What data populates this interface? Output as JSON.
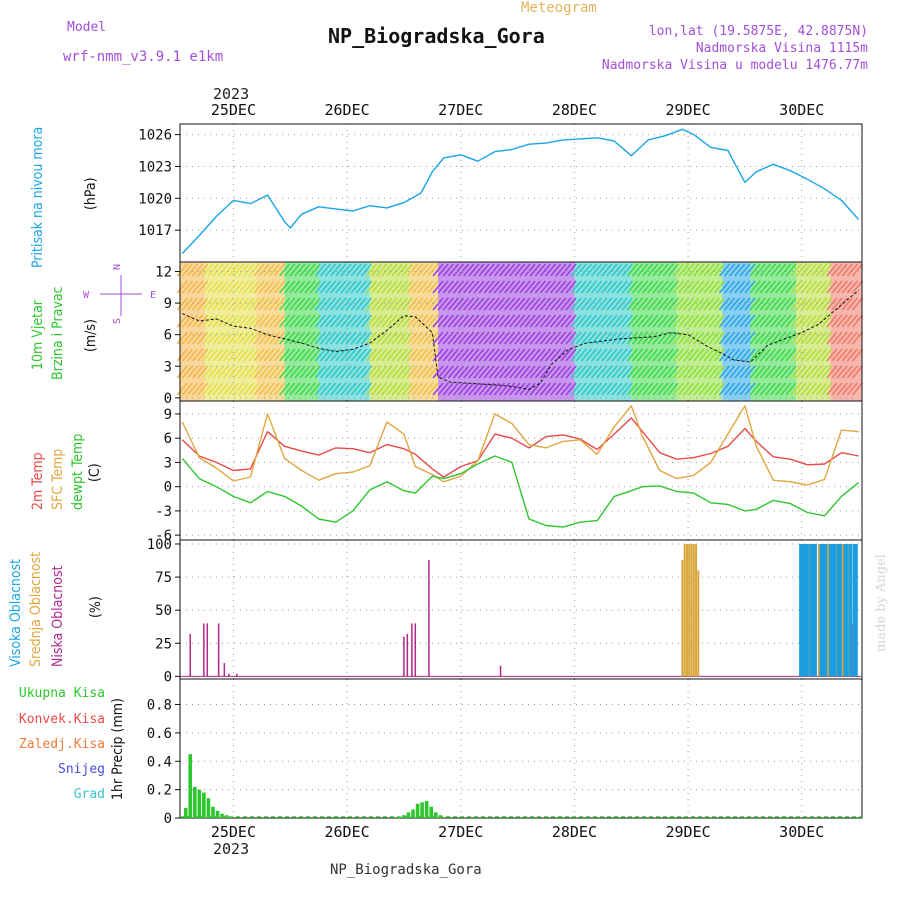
{
  "header": {
    "model_label": "Model",
    "model_value": "wrf-nmm_v3.9.1 e1km",
    "meteogram_label": "Meteogram",
    "title": "NP_Biogradska_Gora",
    "coords": "lon,lat (19.5875E, 42.8875N)",
    "altitude": "Nadmorska Visina 1115m",
    "model_altitude": "Nadmorska Visina u modelu 1476.77m",
    "year": "2023",
    "footer_title": "NP_Biogradska_Gora",
    "watermark": "made by Angel"
  },
  "colors": {
    "pressure": "#1aa6e6",
    "temp2m": "#e84a4a",
    "sfctemp": "#e0a640",
    "dewpt": "#2ec62e",
    "high_cloud": "#1a9ee0",
    "mid_cloud": "#d9a63a",
    "low_cloud": "#b0288c",
    "precip_total": "#2ec62e"
  },
  "chart_data": [
    {
      "type": "line",
      "panel": "pressure",
      "ylabel": "Pritisak na nivou mora",
      "unit": "(hPa)",
      "ylim": [
        1014,
        1027
      ],
      "yticks": [
        1017,
        1020,
        1023,
        1026
      ],
      "x_days": [
        24.55,
        24.7,
        24.85,
        25.0,
        25.15,
        25.3,
        25.45,
        25.5,
        25.6,
        25.75,
        25.9,
        26.05,
        26.2,
        26.35,
        26.5,
        26.65,
        26.75,
        26.85,
        27.0,
        27.15,
        27.3,
        27.45,
        27.6,
        27.75,
        27.9,
        28.05,
        28.2,
        28.35,
        28.5,
        28.65,
        28.8,
        28.95,
        29.05,
        29.2,
        29.35,
        29.5,
        29.6,
        29.75,
        29.9,
        30.05,
        30.2,
        30.35,
        30.5
      ],
      "values": [
        1014.8,
        1016.5,
        1018.3,
        1019.8,
        1019.5,
        1020.3,
        1017.8,
        1017.2,
        1018.5,
        1019.2,
        1019.0,
        1018.8,
        1019.3,
        1019.1,
        1019.6,
        1020.5,
        1022.5,
        1023.8,
        1024.1,
        1023.5,
        1024.4,
        1024.6,
        1025.1,
        1025.2,
        1025.5,
        1025.6,
        1025.7,
        1025.4,
        1024.0,
        1025.5,
        1025.9,
        1026.5,
        1026.0,
        1024.8,
        1024.5,
        1021.5,
        1022.5,
        1023.2,
        1022.6,
        1021.8,
        1020.9,
        1019.8,
        1018.0
      ]
    },
    {
      "type": "line",
      "panel": "wind",
      "ylabel": "10m Vjetar Brzina i Pravac",
      "unit": "(m/s)",
      "ylim": [
        -0.3,
        12.9
      ],
      "yticks": [
        0,
        3,
        6,
        9,
        12
      ],
      "compass": {
        "n": "N",
        "e": "E",
        "w": "W",
        "s": "S"
      },
      "x_days": [
        24.55,
        24.7,
        24.85,
        25.0,
        25.15,
        25.3,
        25.45,
        25.6,
        25.75,
        25.9,
        26.05,
        26.2,
        26.35,
        26.5,
        26.6,
        26.75,
        26.8,
        26.9,
        27.05,
        27.2,
        27.35,
        27.5,
        27.6,
        27.7,
        27.8,
        27.95,
        28.1,
        28.25,
        28.4,
        28.55,
        28.7,
        28.85,
        29.0,
        29.15,
        29.3,
        29.4,
        29.55,
        29.7,
        29.85,
        30.0,
        30.15,
        30.3,
        30.5
      ],
      "values": [
        8.0,
        7.3,
        7.5,
        6.8,
        6.6,
        6.0,
        5.6,
        5.2,
        4.7,
        4.4,
        4.6,
        5.2,
        6.4,
        7.8,
        7.7,
        6.2,
        2.0,
        1.5,
        1.4,
        1.3,
        1.2,
        1.0,
        0.8,
        1.4,
        3.2,
        4.6,
        5.2,
        5.4,
        5.6,
        5.7,
        5.8,
        6.2,
        6.0,
        5.0,
        4.2,
        3.6,
        3.4,
        5.0,
        5.6,
        6.2,
        7.0,
        8.4,
        10.2
      ]
    },
    {
      "type": "line",
      "panel": "temperature",
      "ylabel_lines": [
        "2m Temp",
        "SFC Temp",
        "dewpt Temp"
      ],
      "unit": "(C)",
      "ylim": [
        -6.6,
        10.6
      ],
      "yticks": [
        -6,
        -3,
        0,
        3,
        6,
        9
      ],
      "x_days": [
        24.55,
        24.7,
        24.85,
        25.0,
        25.15,
        25.3,
        25.45,
        25.6,
        25.75,
        25.9,
        26.05,
        26.2,
        26.35,
        26.5,
        26.6,
        26.75,
        26.85,
        27.0,
        27.15,
        27.3,
        27.45,
        27.6,
        27.75,
        27.9,
        28.05,
        28.2,
        28.35,
        28.5,
        28.6,
        28.75,
        28.9,
        29.05,
        29.2,
        29.35,
        29.5,
        29.6,
        29.75,
        29.9,
        30.05,
        30.2,
        30.35,
        30.5
      ],
      "series": [
        {
          "name": "2m Temp",
          "color_key": "temp2m",
          "values": [
            5.8,
            3.8,
            3.0,
            2.0,
            2.2,
            6.8,
            5.0,
            4.4,
            3.9,
            4.8,
            4.7,
            4.2,
            5.2,
            4.7,
            4.0,
            2.2,
            1.2,
            2.5,
            3.2,
            6.5,
            6.0,
            4.8,
            6.2,
            6.4,
            5.9,
            4.6,
            6.5,
            8.5,
            6.8,
            4.2,
            3.4,
            3.6,
            4.1,
            5.0,
            7.2,
            5.6,
            3.7,
            3.4,
            2.7,
            2.8,
            4.2,
            3.8
          ]
        },
        {
          "name": "SFC Temp",
          "color_key": "sfctemp",
          "values": [
            8.0,
            3.6,
            2.3,
            0.7,
            1.2,
            9.0,
            3.5,
            2.0,
            0.8,
            1.6,
            1.8,
            2.6,
            8.0,
            6.5,
            2.5,
            1.5,
            0.6,
            1.3,
            3.2,
            9.0,
            7.8,
            5.2,
            4.8,
            5.6,
            5.8,
            4.0,
            7.4,
            10.0,
            6.2,
            2.0,
            1.0,
            1.4,
            3.0,
            6.5,
            10.0,
            5.0,
            0.8,
            0.6,
            0.2,
            0.9,
            7.0,
            6.8
          ]
        },
        {
          "name": "dewpt Temp",
          "color_key": "dewpt",
          "values": [
            3.5,
            1.0,
            0.0,
            -1.2,
            -2.0,
            -0.6,
            -1.2,
            -2.4,
            -4.0,
            -4.4,
            -3.0,
            -0.4,
            0.6,
            -0.5,
            -0.8,
            1.3,
            1.0,
            1.6,
            2.8,
            3.8,
            3.0,
            -4.0,
            -4.8,
            -5.0,
            -4.4,
            -4.2,
            -1.2,
            -0.5,
            0.0,
            0.1,
            -0.6,
            -0.8,
            -2.0,
            -2.2,
            -3.0,
            -2.8,
            -1.7,
            -2.1,
            -3.2,
            -3.6,
            -1.2,
            0.5
          ]
        }
      ]
    },
    {
      "type": "bar",
      "panel": "cloud",
      "ylabel_lines": [
        "Visoka Oblacnost",
        "Srednja Oblacnost",
        "Niska Oblacnost"
      ],
      "unit": "(%)",
      "ylim": [
        -2,
        103
      ],
      "yticks": [
        0,
        25,
        50,
        75,
        100
      ],
      "series": [
        {
          "name": "Niska Oblacnost",
          "color_key": "low_cloud",
          "x_days": [
            24.62,
            24.74,
            24.77,
            24.87,
            24.92,
            24.96,
            25.03,
            26.5,
            26.53,
            26.57,
            26.6,
            26.72,
            27.35,
            30.45
          ],
          "values": [
            32,
            40,
            40,
            40,
            10,
            2,
            2,
            30,
            32,
            40,
            40,
            88,
            8,
            40
          ]
        },
        {
          "name": "Srednja Oblacnost",
          "color_key": "mid_cloud",
          "x_days": [
            28.95,
            28.97,
            28.99,
            29.01,
            29.03,
            29.05,
            29.07,
            29.09,
            30.07,
            30.15,
            30.23,
            30.31,
            30.36,
            30.41
          ],
          "values": [
            88,
            100,
            100,
            100,
            100,
            100,
            100,
            80,
            100,
            100,
            100,
            100,
            100,
            100
          ]
        },
        {
          "name": "Visoka Oblacnost",
          "color_key": "high_cloud",
          "x_days": [
            29.99,
            30.01,
            30.03,
            30.05,
            30.08,
            30.1,
            30.12,
            30.17,
            30.19,
            30.21,
            30.25,
            30.27,
            30.29,
            30.32,
            30.34,
            30.38,
            30.4,
            30.43,
            30.46,
            30.48
          ],
          "values": [
            100,
            100,
            100,
            100,
            100,
            100,
            100,
            100,
            100,
            100,
            100,
            100,
            100,
            100,
            100,
            100,
            100,
            100,
            100,
            100
          ]
        }
      ]
    },
    {
      "type": "bar",
      "panel": "precip",
      "ylabel": "1hr Precip (mm)",
      "ylim": [
        0,
        0.98
      ],
      "yticks": [
        0,
        0.2,
        0.4,
        0.6,
        0.8
      ],
      "ytick_labels": [
        "0",
        "0.2",
        "0.4",
        "0.6",
        "0.8"
      ],
      "legend": [
        "Ukupna Kisa",
        "Konvek.Kisa",
        "Zaledj.Kisa",
        "Snijeg",
        "Grad"
      ],
      "legend_colors": [
        "#2ec62e",
        "#e84a4a",
        "#f07a3a",
        "#4a4ae0",
        "#3ac6c6"
      ],
      "x_days": [
        24.58,
        24.62,
        24.66,
        24.7,
        24.74,
        24.78,
        24.82,
        24.86,
        24.9,
        24.94,
        24.98,
        26.46,
        26.5,
        26.54,
        26.58,
        26.62,
        26.66,
        26.7,
        26.74,
        26.78,
        26.82
      ],
      "values": [
        0.07,
        0.45,
        0.22,
        0.2,
        0.18,
        0.14,
        0.08,
        0.05,
        0.03,
        0.02,
        0.01,
        0.01,
        0.02,
        0.04,
        0.06,
        0.1,
        0.11,
        0.12,
        0.08,
        0.04,
        0.02
      ]
    }
  ],
  "x_axis": {
    "day_labels": [
      "25DEC",
      "26DEC",
      "27DEC",
      "28DEC",
      "29DEC",
      "30DEC"
    ],
    "day_values": [
      25,
      26,
      27,
      28,
      29,
      30
    ],
    "xlim": [
      24.53,
      30.53
    ]
  }
}
